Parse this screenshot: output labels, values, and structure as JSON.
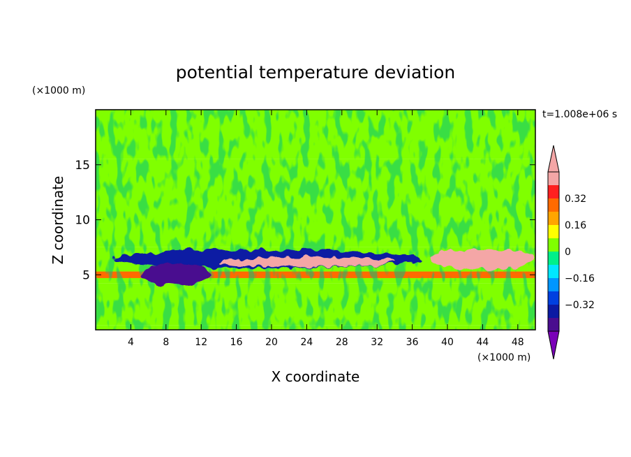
{
  "chart_data": {
    "type": "heatmap",
    "title": "potential temperature deviation",
    "xlabel": "X coordinate",
    "ylabel": "Z coordinate",
    "x_unit": "(×1000 m)",
    "y_unit": "(×1000 m)",
    "time_label": "t=1.008e+06 s",
    "xlim": [
      0,
      50
    ],
    "ylim": [
      0,
      20
    ],
    "x_ticks": [
      4,
      8,
      12,
      16,
      20,
      24,
      28,
      32,
      36,
      40,
      44,
      48
    ],
    "y_ticks": [
      5,
      10,
      15
    ],
    "colorbar": {
      "levels": [
        -0.48,
        -0.4,
        -0.32,
        -0.24,
        -0.16,
        -0.08,
        0,
        0.08,
        0.16,
        0.24,
        0.32,
        0.4,
        0.48
      ],
      "colors": [
        "#7a00b8",
        "#4a0d8f",
        "#0b1aa3",
        "#0040e0",
        "#0096ff",
        "#00e8ff",
        "#00f08a",
        "#80ff00",
        "#ffff00",
        "#ffa500",
        "#ff6a00",
        "#ff2020",
        "#f4a6a6",
        "#f4a6a6"
      ],
      "tick_labels": [
        "0.32",
        "0.16",
        "0",
        "−0.16",
        "−0.32"
      ],
      "tick_values": [
        0.32,
        0.16,
        0,
        -0.16,
        -0.32
      ]
    },
    "bands": [
      {
        "z0": 0,
        "z1": 0.4,
        "value": 0.04
      },
      {
        "z0": 0.4,
        "z1": 4.2,
        "value": 0.0
      },
      {
        "z0": 4.2,
        "z1": 4.7,
        "value": 0.06
      },
      {
        "z0": 4.7,
        "z1": 5.3,
        "value": 0.25
      },
      {
        "z0": 5.3,
        "z1": 7.5,
        "value": 0.02
      },
      {
        "z0": 7.5,
        "z1": 15.5,
        "value": 0.0
      },
      {
        "z0": 15.5,
        "z1": 20,
        "value": 0.05
      }
    ],
    "anomalies": [
      {
        "x0": 2,
        "x1": 37,
        "z0": 5.6,
        "z1": 7.3,
        "value": -0.36
      },
      {
        "x0": 5,
        "x1": 13,
        "z0": 4.1,
        "z1": 6.0,
        "value": -0.46
      },
      {
        "x0": 38,
        "x1": 50,
        "z0": 5.5,
        "z1": 7.4,
        "value": 0.45
      },
      {
        "x0": 14,
        "x1": 34,
        "z0": 5.7,
        "z1": 6.6,
        "value": 0.42
      }
    ]
  }
}
